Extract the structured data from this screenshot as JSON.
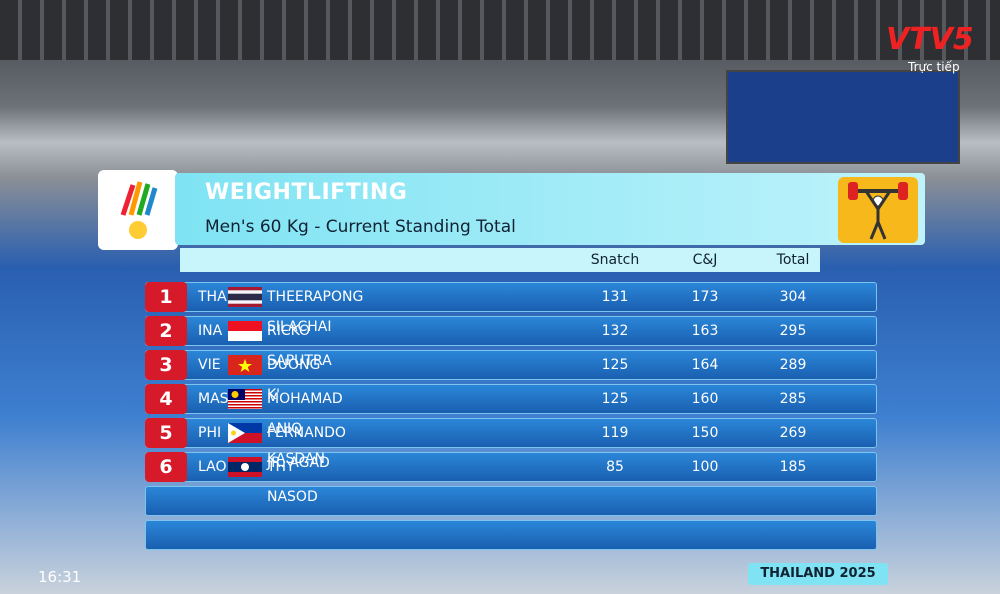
{
  "channel": {
    "name": "VTV5",
    "status": "Trực tiếp"
  },
  "header": {
    "title": "WEIGHTLIFTING",
    "subtitle": "Men's 60 Kg  -  Current Standing Total"
  },
  "table": {
    "columns": [
      "Snatch",
      "C&J",
      "Total"
    ],
    "rows": [
      {
        "rank": 1,
        "country": "THA",
        "name": "THEERAPONG SILACHAI",
        "snatch": 131,
        "cj": 173,
        "total": 304
      },
      {
        "rank": 2,
        "country": "INA",
        "name": "RICKO SAPUTRA",
        "snatch": 132,
        "cj": 163,
        "total": 295
      },
      {
        "rank": 3,
        "country": "VIE",
        "name": "DUONG K'",
        "snatch": 125,
        "cj": 164,
        "total": 289
      },
      {
        "rank": 4,
        "country": "MAS",
        "name": "MOHAMAD ANIQ KASDAN",
        "snatch": 125,
        "cj": 160,
        "total": 285
      },
      {
        "rank": 5,
        "country": "PHI",
        "name": "FERNANDO JR. AGAD",
        "snatch": 119,
        "cj": 150,
        "total": 269
      },
      {
        "rank": 6,
        "country": "LAO",
        "name": "THY NASOD",
        "snatch": 85,
        "cj": 100,
        "total": 185
      }
    ]
  },
  "footer": "THAILAND 2025",
  "clock": "16:31"
}
